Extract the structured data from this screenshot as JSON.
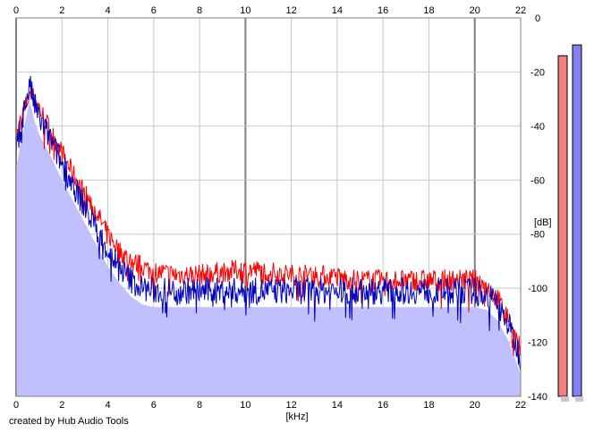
{
  "chart_data": {
    "type": "area",
    "xlabel": "[kHz]",
    "ylabel": "[dB]",
    "xlim": [
      0,
      22
    ],
    "ylim": [
      -140,
      0
    ],
    "x_ticks": [
      "0",
      "2",
      "4",
      "6",
      "8",
      "10",
      "12",
      "14",
      "16",
      "18",
      "20",
      "22"
    ],
    "y_ticks": [
      "0",
      "-20",
      "-40",
      "-60",
      "-80",
      "-100",
      "-120",
      "-140"
    ],
    "grid": true,
    "series": [
      {
        "color": "#ff0000",
        "x": [
          0,
          0.2,
          0.4,
          0.6,
          0.8,
          1,
          1.5,
          2,
          2.5,
          3,
          3.5,
          4,
          4.5,
          5,
          5.5,
          6,
          7,
          8,
          9,
          10,
          11,
          12,
          13,
          14,
          15,
          16,
          17,
          18,
          19,
          20,
          20.5,
          21,
          21.5,
          22
        ],
        "values": [
          -45,
          -38,
          -33,
          -28,
          -30,
          -33,
          -42,
          -50,
          -58,
          -65,
          -72,
          -80,
          -86,
          -90,
          -92,
          -94,
          -95,
          -95,
          -94,
          -93,
          -94,
          -95,
          -95,
          -96,
          -97,
          -97,
          -97,
          -97,
          -97,
          -97,
          -99,
          -104,
          -112,
          -123
        ]
      },
      {
        "color": "#0000c0",
        "x": [
          0,
          0.2,
          0.4,
          0.6,
          0.8,
          1,
          1.5,
          2,
          2.5,
          3,
          3.5,
          4,
          4.5,
          5,
          5.5,
          6,
          7,
          8,
          9,
          10,
          11,
          12,
          13,
          14,
          15,
          16,
          17,
          18,
          19,
          20,
          20.5,
          21,
          21.5,
          22
        ],
        "values": [
          -50,
          -40,
          -32,
          -25,
          -32,
          -37,
          -45,
          -54,
          -62,
          -70,
          -78,
          -86,
          -92,
          -97,
          -100,
          -101,
          -101,
          -101,
          -101,
          -101,
          -101,
          -101,
          -101,
          -101,
          -101,
          -101,
          -101,
          -101,
          -101,
          -101,
          -102,
          -106,
          -114,
          -126
        ]
      }
    ],
    "fill_color": "#c0c0ff",
    "grid_color": "#c8c8c8",
    "grid_major_color": "#808080",
    "level_meters": [
      {
        "color": "#f08080",
        "level_db": -14
      },
      {
        "color": "#8080f0",
        "level_db": -10
      }
    ]
  },
  "footer": {
    "credit": "created by Hub Audio Tools"
  }
}
